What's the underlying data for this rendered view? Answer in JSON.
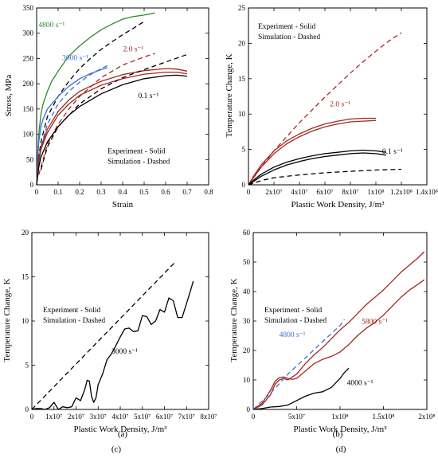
{
  "chart_data": [
    {
      "panel": "(a)",
      "type": "line",
      "xlabel": "Strain",
      "ylabel": "Stress, MPa",
      "xlim": [
        0,
        0.8
      ],
      "ylim": [
        0,
        350
      ],
      "xticks": [
        0,
        0.1,
        0.2,
        0.3,
        0.4,
        0.5,
        0.6,
        0.7,
        0.8
      ],
      "xtick_labels": [
        "0",
        "0.1",
        "0.2",
        "0.3",
        "0.4",
        "0.5",
        "0.6",
        "0.7",
        "0.8"
      ],
      "yticks": [
        0,
        50,
        100,
        150,
        200,
        250,
        300,
        350
      ],
      "ytick_labels": [
        "0",
        "50",
        "100",
        "150",
        "200",
        "250",
        "300",
        "350"
      ],
      "legend_text": [
        "Experiment - Solid",
        "Simulation - Dashed"
      ],
      "legend_position": "bottom-right",
      "series": [
        {
          "name": "4800 s⁻¹",
          "style": "solid",
          "color": "#2e8b2e",
          "label_at": [
            0.07,
            312
          ],
          "label_color": "#2e8b2e",
          "x": [
            0,
            0.005,
            0.01,
            0.02,
            0.03,
            0.05,
            0.07,
            0.1,
            0.15,
            0.2,
            0.25,
            0.3,
            0.35,
            0.4,
            0.45,
            0.5,
            0.55
          ],
          "y": [
            0,
            60,
            100,
            140,
            160,
            185,
            205,
            225,
            255,
            275,
            292,
            307,
            318,
            328,
            333,
            336,
            340
          ]
        },
        {
          "name": "4800 s⁻¹",
          "style": "dashed",
          "color": "#000000",
          "label_at": null,
          "label_color": null,
          "x": [
            0.003,
            0.01,
            0.02,
            0.05,
            0.1,
            0.15,
            0.2,
            0.25,
            0.3,
            0.35,
            0.4,
            0.45,
            0.5
          ],
          "y": [
            20,
            55,
            85,
            135,
            175,
            205,
            230,
            250,
            268,
            283,
            297,
            310,
            323
          ]
        },
        {
          "name": "3000 s⁻¹",
          "style": "solid",
          "color": "#3a6fd8",
          "label_at": [
            0.18,
            247
          ],
          "label_color": "#3a6fd8",
          "x": [
            0,
            0.005,
            0.01,
            0.02,
            0.03,
            0.05,
            0.07,
            0.1,
            0.15,
            0.2,
            0.25,
            0.3,
            0.33
          ],
          "y": [
            0,
            50,
            85,
            115,
            130,
            150,
            160,
            175,
            195,
            210,
            220,
            228,
            232
          ]
        },
        {
          "name": "3000 s⁻¹",
          "style": "dashed",
          "color": "#3a6fd8",
          "label_at": null,
          "label_color": null,
          "x": [
            0.003,
            0.01,
            0.02,
            0.05,
            0.1,
            0.15,
            0.2,
            0.25,
            0.3,
            0.33
          ],
          "y": [
            15,
            45,
            75,
            120,
            160,
            185,
            203,
            218,
            230,
            236
          ]
        },
        {
          "name": "2.0 s⁻¹",
          "style": "solid",
          "color": "#a0291e",
          "label_at": [
            0.45,
            264
          ],
          "label_color": "#a0291e",
          "x": [
            0,
            0.01,
            0.02,
            0.05,
            0.1,
            0.15,
            0.2,
            0.3,
            0.4,
            0.5,
            0.6,
            0.65,
            0.7
          ],
          "y": [
            0,
            50,
            75,
            110,
            145,
            168,
            185,
            205,
            218,
            226,
            230,
            229,
            225
          ]
        },
        {
          "name": "2.0 s⁻¹",
          "style": "solid",
          "color": "#a0291e",
          "label_at": null,
          "label_color": null,
          "x": [
            0,
            0.01,
            0.02,
            0.05,
            0.1,
            0.15,
            0.2,
            0.3,
            0.4,
            0.5,
            0.6,
            0.65,
            0.7
          ],
          "y": [
            0,
            45,
            70,
            103,
            138,
            160,
            177,
            197,
            210,
            219,
            223,
            223,
            220
          ]
        },
        {
          "name": "2.0 s⁻¹",
          "style": "dashed",
          "color": "#a0291e",
          "label_at": null,
          "label_color": null,
          "x": [
            0.01,
            0.05,
            0.1,
            0.15,
            0.2,
            0.3,
            0.4,
            0.5,
            0.55
          ],
          "y": [
            20,
            80,
            120,
            150,
            175,
            212,
            237,
            253,
            260
          ]
        },
        {
          "name": "0.1 s⁻¹",
          "style": "solid",
          "color": "#000000",
          "label_at": [
            0.52,
            172
          ],
          "label_color": "#000000",
          "x": [
            0,
            0.01,
            0.02,
            0.05,
            0.1,
            0.15,
            0.2,
            0.3,
            0.4,
            0.5,
            0.6,
            0.65,
            0.7
          ],
          "y": [
            0,
            35,
            55,
            85,
            115,
            138,
            155,
            180,
            198,
            210,
            216,
            217,
            215
          ]
        },
        {
          "name": "0.1 s⁻¹",
          "style": "dashed",
          "color": "#000000",
          "label_at": null,
          "label_color": null,
          "x": [
            0.02,
            0.05,
            0.1,
            0.2,
            0.3,
            0.4,
            0.5,
            0.6,
            0.7
          ],
          "y": [
            30,
            75,
            115,
            160,
            190,
            212,
            228,
            243,
            258
          ]
        }
      ]
    },
    {
      "panel": "(b)",
      "type": "line",
      "xlabel": "Plastic Work Density, J/m³",
      "ylabel": "Temperature Change, K",
      "xlim": [
        0,
        140000000
      ],
      "ylim": [
        0,
        25
      ],
      "xticks": [
        0,
        20000000,
        40000000,
        60000000,
        80000000,
        100000000,
        120000000,
        140000000
      ],
      "xtick_labels": [
        "0",
        "2x10⁷",
        "4x10⁷",
        "6x10⁷",
        "8x10⁷",
        "1x10⁸",
        "1.2x10⁸",
        "1.4x10⁸"
      ],
      "yticks": [
        0,
        5,
        10,
        15,
        20,
        25
      ],
      "ytick_labels": [
        "0",
        "5",
        "10",
        "15",
        "20",
        "25"
      ],
      "legend_text": [
        "Experiment - Solid",
        "Simulation - Dashed"
      ],
      "legend_position": "top-left",
      "series": [
        {
          "name": "2.0 s⁻¹",
          "style": "dashed",
          "color": "#a0291e",
          "label_at": null,
          "label_color": null,
          "x": [
            0,
            10000000,
            20000000,
            30000000,
            40000000,
            50000000,
            60000000,
            70000000,
            80000000,
            90000000,
            100000000,
            110000000,
            120000000
          ],
          "y": [
            0,
            2.5,
            4.8,
            6.8,
            8.8,
            10.6,
            12.4,
            14.1,
            15.8,
            17.4,
            18.9,
            20.3,
            21.5
          ]
        },
        {
          "name": "2.0 s⁻¹",
          "style": "solid",
          "color": "#a0291e",
          "label_at": [
            72000000,
            11.1
          ],
          "label_color": "#a0291e",
          "x": [
            0,
            5000000,
            10000000,
            20000000,
            30000000,
            40000000,
            50000000,
            60000000,
            70000000,
            80000000,
            90000000,
            100000000
          ],
          "y": [
            0,
            1.5,
            2.8,
            4.8,
            6.2,
            7.2,
            8.0,
            8.6,
            9.0,
            9.3,
            9.4,
            9.4
          ]
        },
        {
          "name": "2.0 s⁻¹",
          "style": "solid",
          "color": "#a0291e",
          "label_at": null,
          "label_color": null,
          "x": [
            0,
            5000000,
            10000000,
            20000000,
            30000000,
            40000000,
            50000000,
            60000000,
            70000000,
            80000000,
            90000000,
            100000000
          ],
          "y": [
            0,
            1.3,
            2.5,
            4.4,
            5.8,
            6.8,
            7.6,
            8.2,
            8.6,
            8.9,
            9.0,
            9.1
          ]
        },
        {
          "name": "0.1 s⁻¹",
          "style": "solid",
          "color": "#000000",
          "label_at": [
            113000000,
            4.4
          ],
          "label_color": "#000000",
          "x": [
            0,
            5000000,
            10000000,
            20000000,
            30000000,
            40000000,
            50000000,
            60000000,
            70000000,
            80000000,
            90000000,
            100000000,
            108000000
          ],
          "y": [
            0,
            0.8,
            1.5,
            2.5,
            3.2,
            3.7,
            4.1,
            4.4,
            4.6,
            4.8,
            4.9,
            4.8,
            4.6
          ]
        },
        {
          "name": "0.1 s⁻¹",
          "style": "solid",
          "color": "#000000",
          "label_at": null,
          "label_color": null,
          "x": [
            0,
            5000000,
            10000000,
            20000000,
            30000000,
            40000000,
            50000000,
            60000000,
            70000000,
            80000000,
            90000000,
            100000000,
            108000000
          ],
          "y": [
            0,
            0.6,
            1.2,
            2.1,
            2.8,
            3.3,
            3.7,
            4.0,
            4.2,
            4.4,
            4.5,
            4.4,
            4.2
          ]
        },
        {
          "name": "0.1 s⁻¹",
          "style": "dashed",
          "color": "#000000",
          "label_at": null,
          "label_color": null,
          "x": [
            0,
            10000000,
            20000000,
            40000000,
            60000000,
            80000000,
            100000000,
            120000000
          ],
          "y": [
            0,
            0.6,
            1.0,
            1.4,
            1.7,
            1.9,
            2.1,
            2.2
          ]
        }
      ]
    },
    {
      "panel": "(c)",
      "type": "line",
      "xlabel": "Plastic Work Density, J/m³",
      "ylabel": "Temperature Change, K",
      "xlim": [
        0,
        80000000
      ],
      "ylim": [
        0,
        20
      ],
      "xticks": [
        0,
        10000000,
        20000000,
        30000000,
        40000000,
        50000000,
        60000000,
        70000000,
        80000000
      ],
      "xtick_labels": [
        "0",
        "1x10⁷",
        "2x10⁷",
        "3x10⁷",
        "4x10⁷",
        "5x10⁷",
        "6x10⁷",
        "7x10⁷",
        "8x10⁷"
      ],
      "yticks": [
        0,
        5,
        10,
        15,
        20
      ],
      "ytick_labels": [
        "0",
        "5",
        "10",
        "15",
        "20"
      ],
      "legend_text": [
        "Experiment - Solid",
        "Simulation - Dashed"
      ],
      "legend_position": "center-left",
      "series": [
        {
          "name": "3000 s⁻¹",
          "style": "dashed",
          "color": "#000000",
          "label_at": null,
          "label_color": null,
          "x": [
            0,
            65000000
          ],
          "y": [
            0,
            16.7
          ]
        },
        {
          "name": "3000 s⁻¹",
          "style": "solid",
          "color": "#000000",
          "label_at": [
            42000000,
            6.3
          ],
          "label_color": "#000000",
          "x": [
            0,
            2000000,
            4000000,
            6000000,
            8000000,
            10000000,
            12000000,
            14000000,
            16000000,
            18000000,
            20000000,
            22000000,
            24000000,
            25000000,
            26000000,
            27000000,
            28000000,
            29000000,
            30000000,
            32000000,
            34000000,
            36000000,
            38000000,
            40000000,
            42000000,
            44000000,
            46000000,
            48000000,
            50000000,
            52000000,
            54000000,
            56000000,
            58000000,
            60000000,
            62000000,
            64000000,
            66000000,
            68000000,
            70000000,
            72000000,
            73000000
          ],
          "y": [
            0,
            0.1,
            0.1,
            0,
            0.2,
            0.8,
            0,
            0.3,
            0.2,
            0.3,
            1.3,
            1.0,
            2.3,
            3.3,
            3.2,
            1.5,
            0.8,
            1.3,
            2.8,
            4.0,
            5.6,
            6.3,
            7.2,
            8.2,
            9.1,
            9.2,
            8.8,
            8.9,
            10.6,
            10.5,
            9.6,
            10.0,
            11.3,
            11.0,
            12.6,
            12.3,
            10.4,
            10.4,
            12.0,
            13.6,
            14.5
          ]
        }
      ]
    },
    {
      "panel": "(d)",
      "type": "line",
      "xlabel": "Plastic Work Density, J/m³",
      "ylabel": "Temperature Change, K",
      "xlim": [
        0,
        200000000
      ],
      "ylim": [
        0,
        60
      ],
      "xticks": [
        0,
        50000000,
        100000000,
        150000000,
        200000000
      ],
      "xtick_labels": [
        "0",
        "5x10⁷",
        "1x10⁸",
        "1.5x10⁸",
        "2x10⁸"
      ],
      "yticks": [
        0,
        10,
        20,
        30,
        40,
        50,
        60
      ],
      "ytick_labels": [
        "0",
        "10",
        "20",
        "30",
        "40",
        "50",
        "60"
      ],
      "legend_text": [
        "Experiment - Solid",
        "Simulation - Dashed"
      ],
      "legend_position": "center-left",
      "series": [
        {
          "name": "5800 s⁻¹",
          "style": "solid",
          "color": "#a0291e",
          "label_at": [
            140000000,
            29
          ],
          "label_color": "#a0291e",
          "x": [
            0,
            10000000,
            20000000,
            25000000,
            30000000,
            35000000,
            40000000,
            45000000,
            50000000,
            60000000,
            70000000,
            80000000,
            90000000,
            100000000,
            110000000,
            120000000,
            130000000,
            140000000,
            150000000,
            160000000,
            170000000,
            180000000,
            190000000,
            197000000
          ],
          "y": [
            0,
            2.0,
            6.5,
            9.5,
            10.8,
            11.0,
            10.5,
            10.2,
            10.5,
            13.0,
            15.5,
            17.0,
            18.0,
            19.5,
            22.0,
            25.0,
            27.5,
            29.5,
            32.0,
            35.0,
            38.0,
            40.5,
            42.5,
            44.0
          ]
        },
        {
          "name": "5800 s⁻¹",
          "style": "solid",
          "color": "#a0291e",
          "label_at": null,
          "label_color": null,
          "x": [
            0,
            10000000,
            20000000,
            25000000,
            30000000,
            35000000,
            40000000,
            50000000,
            60000000,
            70000000,
            80000000,
            90000000,
            100000000,
            110000000,
            120000000,
            130000000,
            140000000,
            150000000,
            160000000,
            170000000,
            180000000,
            190000000,
            197000000
          ],
          "y": [
            0,
            1.5,
            5.0,
            8.5,
            10.0,
            10.5,
            10.0,
            12.0,
            15.5,
            18.5,
            21.0,
            24.0,
            27.0,
            29.5,
            32.5,
            35.5,
            38.0,
            40.5,
            43.5,
            46.5,
            49.0,
            51.5,
            53.5
          ]
        },
        {
          "name": "4800 s⁻¹",
          "style": "dashed",
          "color": "#3a6fd8",
          "label_at": [
            45000000,
            24.6
          ],
          "label_color": "#3a6fd8",
          "x": [
            0,
            20000000,
            40000000,
            60000000,
            80000000,
            100000000,
            105000000
          ],
          "y": [
            0,
            5.5,
            12.0,
            17.5,
            23.0,
            28.5,
            30.5
          ]
        },
        {
          "name": "4000 s⁻¹",
          "style": "solid",
          "color": "#000000",
          "label_at": [
            123000000,
            8.2
          ],
          "label_color": "#000000",
          "x": [
            0,
            10000000,
            20000000,
            30000000,
            40000000,
            50000000,
            60000000,
            70000000,
            80000000,
            90000000,
            100000000,
            105000000,
            110000000
          ],
          "y": [
            0,
            0.3,
            0.8,
            1.0,
            1.5,
            3.0,
            4.5,
            5.5,
            6.0,
            7.5,
            10.5,
            12.5,
            14.0
          ]
        }
      ]
    }
  ]
}
